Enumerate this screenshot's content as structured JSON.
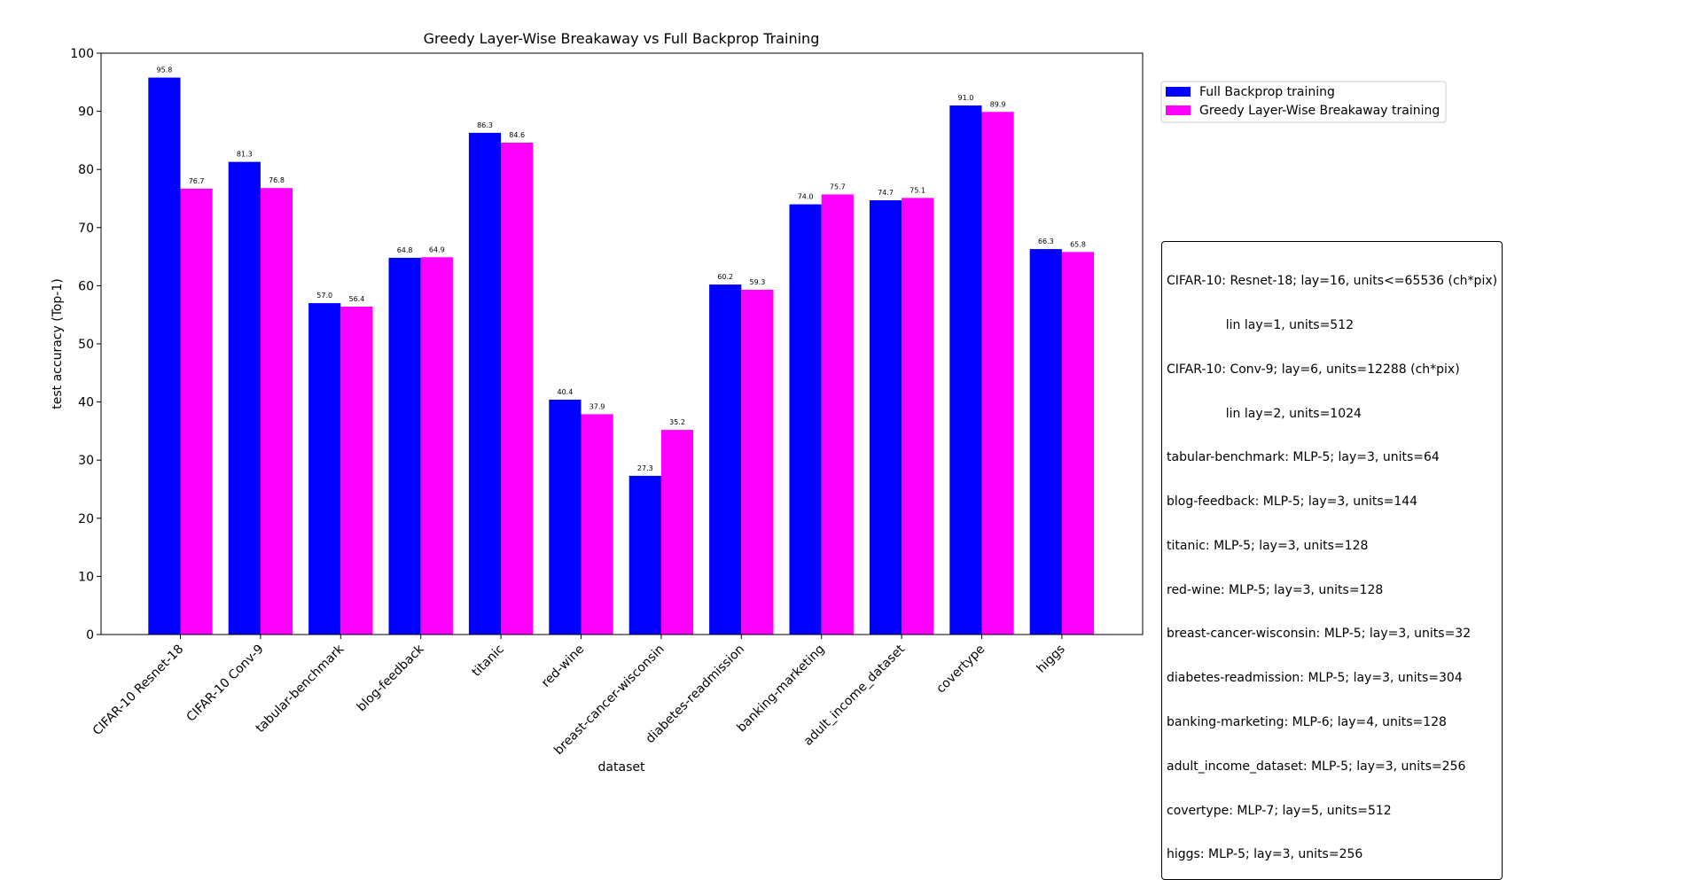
{
  "chart_data": {
    "type": "bar",
    "title": "Greedy Layer-Wise Breakaway vs Full Backprop Training",
    "xlabel": "dataset",
    "ylabel": "test accuracy (Top-1)",
    "ylim": [
      0,
      100
    ],
    "yticks": [
      0,
      10,
      20,
      30,
      40,
      50,
      60,
      70,
      80,
      90,
      100
    ],
    "grid": false,
    "legend_position": "top-right outside",
    "categories": [
      "CIFAR-10 Resnet-18",
      "CIFAR-10 Conv-9",
      "tabular-benchmark",
      "blog-feedback",
      "titanic",
      "red-wine",
      "breast-cancer-wisconsin",
      "diabetes-readmission",
      "banking-marketing",
      "adult_income_dataset",
      "covertype",
      "higgs"
    ],
    "series": [
      {
        "name": "Full Backprop training",
        "color": "#0000ff",
        "values": [
          95.8,
          81.3,
          57.0,
          64.8,
          86.3,
          40.4,
          27.3,
          60.2,
          74.0,
          74.7,
          91.0,
          66.3
        ]
      },
      {
        "name": "Greedy Layer-Wise Breakaway training",
        "color": "#ff00ff",
        "values": [
          76.7,
          76.8,
          56.4,
          64.9,
          84.6,
          37.9,
          35.2,
          59.3,
          75.7,
          75.1,
          89.9,
          65.8
        ]
      }
    ]
  },
  "info_box": {
    "lines": [
      "CIFAR-10: Resnet-18; lay=16, units<=65536 (ch*pix)",
      "               lin lay=1, units=512",
      "CIFAR-10: Conv-9; lay=6, units=12288 (ch*pix)",
      "               lin lay=2, units=1024",
      "tabular-benchmark: MLP-5; lay=3, units=64",
      "blog-feedback: MLP-5; lay=3, units=144",
      "titanic: MLP-5; lay=3, units=128",
      "red-wine: MLP-5; lay=3, units=128",
      "breast-cancer-wisconsin: MLP-5; lay=3, units=32",
      "diabetes-readmission: MLP-5; lay=3, units=304",
      "banking-marketing: MLP-6; lay=4, units=128",
      "adult_income_dataset: MLP-5; lay=3, units=256",
      "covertype: MLP-7; lay=5, units=512",
      "higgs: MLP-5; lay=3, units=256"
    ]
  }
}
